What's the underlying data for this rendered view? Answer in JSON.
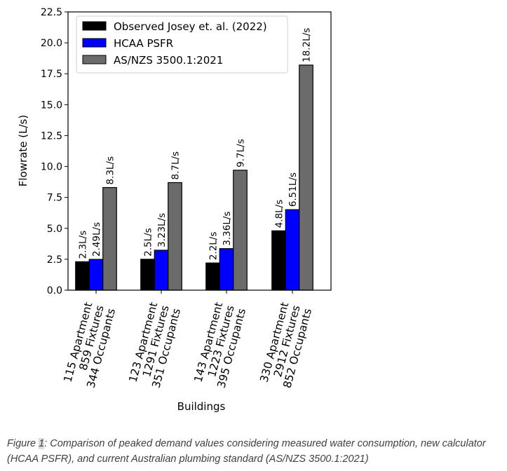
{
  "chart_data": {
    "type": "bar",
    "xlabel": "Buildings",
    "ylabel": "Flowrate (L/s)",
    "ylim": [
      0,
      22.5
    ],
    "yticks": [
      "0.0",
      "2.5",
      "5.0",
      "7.5",
      "10.0",
      "12.5",
      "15.0",
      "17.5",
      "20.0",
      "22.5"
    ],
    "categories": [
      [
        "115 Apartment",
        "859 Fixtures",
        "344 Occupants"
      ],
      [
        "123 Apartment",
        "1291 Fixtures",
        "351 Occupants"
      ],
      [
        "143 Apartment",
        "1223 Fixtures",
        "395 Occupants"
      ],
      [
        "330 Apartment",
        "2912 Fixtures",
        "852 Occupants"
      ]
    ],
    "series": [
      {
        "name": "Observed Josey et. al. (2022)",
        "color": "#000000",
        "values": [
          2.3,
          2.5,
          2.2,
          4.8
        ],
        "labels": [
          "2.3L/s",
          "2.5L/s",
          "2.2L/s",
          "4.8L/s"
        ]
      },
      {
        "name": "HCAA PSFR",
        "color": "#0000ff",
        "values": [
          2.49,
          3.23,
          3.36,
          6.51
        ],
        "labels": [
          "2.49L/s",
          "3.23L/s",
          "3.36L/s",
          "6.51L/s"
        ]
      },
      {
        "name": "AS/NZS 3500.1:2021",
        "color": "#6b6b6b",
        "values": [
          8.3,
          8.7,
          9.7,
          18.2
        ],
        "labels": [
          "8.3L/s",
          "8.7L/s",
          "9.7L/s",
          "18.2L/s"
        ]
      }
    ],
    "legend_position": "top-left",
    "grid": false
  },
  "caption": {
    "prefix": "Figure ",
    "number": "1",
    "text": ": Comparison of peaked demand values considering measured water consumption, new calculator (HCAA PSFR), and current Australian plumbing standard (AS/NZS 3500.1:2021)"
  }
}
